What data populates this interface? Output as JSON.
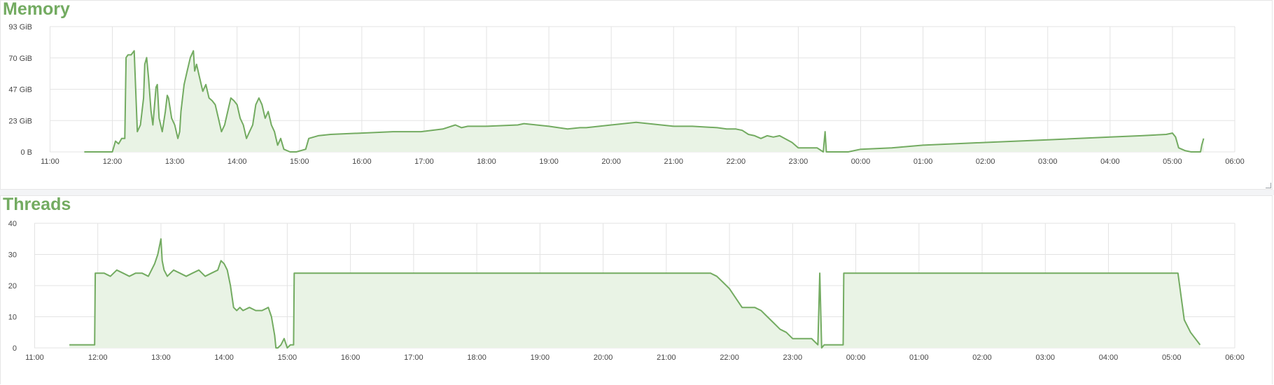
{
  "panels": {
    "memory": {
      "title": "Memory"
    },
    "threads": {
      "title": "Threads"
    }
  },
  "colors": {
    "series": "#73ab61",
    "fill": "#e9f3e5",
    "grid": "#e3e3e3",
    "axis_text": "#464646"
  },
  "chart_data": [
    {
      "type": "area",
      "title": "Memory",
      "xlabel": "",
      "ylabel": "",
      "x_ticks": [
        "11:00",
        "12:00",
        "13:00",
        "14:00",
        "15:00",
        "16:00",
        "17:00",
        "18:00",
        "19:00",
        "20:00",
        "21:00",
        "22:00",
        "23:00",
        "00:00",
        "01:00",
        "02:00",
        "03:00",
        "04:00",
        "05:00",
        "06:00"
      ],
      "y_ticks": [
        "0 B",
        "23 GiB",
        "47 GiB",
        "70 GiB",
        "93 GiB"
      ],
      "ylim": [
        0,
        93
      ],
      "y_unit": "GiB",
      "xlim_hours": [
        10.995,
        30.0
      ],
      "grid": true,
      "legend": "none",
      "series": [
        {
          "x_hours": [
            11.55,
            12.0,
            12.05,
            12.1,
            12.15,
            12.2,
            12.22,
            12.25,
            12.3,
            12.35,
            12.4,
            12.45,
            12.5,
            12.52,
            12.55,
            12.58,
            12.62,
            12.65,
            12.7,
            12.72,
            12.75,
            12.8,
            12.85,
            12.88,
            12.9,
            12.95,
            13.0,
            13.05,
            13.08,
            13.1,
            13.15,
            13.2,
            13.25,
            13.3,
            13.32,
            13.35,
            13.4,
            13.45,
            13.5,
            13.55,
            13.6,
            13.65,
            13.7,
            13.75,
            13.8,
            13.85,
            13.9,
            13.95,
            14.0,
            14.05,
            14.1,
            14.15,
            14.2,
            14.25,
            14.3,
            14.35,
            14.4,
            14.45,
            14.5,
            14.55,
            14.6,
            14.65,
            14.7,
            14.75,
            14.85,
            14.95,
            15.1,
            15.15,
            15.3,
            15.5,
            16.0,
            16.5,
            16.95,
            17.3,
            17.5,
            17.6,
            17.7,
            18.0,
            18.5,
            18.6,
            18.8,
            19.0,
            19.3,
            19.5,
            19.6,
            20.0,
            20.2,
            20.4,
            21.0,
            21.3,
            21.7,
            21.85,
            22.0,
            22.1,
            22.2,
            22.3,
            22.4,
            22.5,
            22.6,
            22.7,
            22.9,
            23.0,
            23.3,
            23.4,
            23.43,
            23.45,
            23.5,
            23.8,
            24.0,
            24.5,
            25.0,
            26.0,
            27.0,
            28.0,
            28.5,
            28.9,
            29.0,
            29.05,
            29.1,
            29.2,
            29.3,
            29.45,
            29.47,
            29.5
          ],
          "values": [
            0,
            0,
            8,
            6,
            10,
            10,
            70,
            72,
            72,
            75,
            15,
            20,
            40,
            65,
            70,
            55,
            30,
            20,
            48,
            50,
            25,
            15,
            30,
            42,
            40,
            25,
            20,
            10,
            15,
            30,
            50,
            60,
            70,
            75,
            60,
            65,
            55,
            45,
            50,
            40,
            38,
            35,
            25,
            15,
            20,
            30,
            40,
            38,
            35,
            25,
            20,
            10,
            15,
            20,
            35,
            40,
            35,
            25,
            30,
            20,
            15,
            5,
            10,
            2,
            0,
            0,
            2,
            10,
            12,
            13,
            14,
            15,
            15,
            17,
            20,
            18,
            19,
            19,
            20,
            21,
            20,
            19,
            17,
            18,
            18,
            20,
            21,
            22,
            19,
            19,
            18,
            17,
            17,
            16,
            13,
            12,
            10,
            12,
            11,
            12,
            7,
            3,
            3,
            0,
            15,
            0,
            0,
            0,
            2,
            3,
            5,
            7,
            9,
            11,
            12,
            13,
            14,
            11,
            3,
            1,
            0,
            0,
            5,
            10
          ]
        }
      ]
    },
    {
      "type": "area",
      "title": "Threads",
      "xlabel": "",
      "ylabel": "",
      "x_ticks": [
        "11:00",
        "12:00",
        "13:00",
        "14:00",
        "15:00",
        "16:00",
        "17:00",
        "18:00",
        "19:00",
        "20:00",
        "21:00",
        "22:00",
        "23:00",
        "00:00",
        "01:00",
        "02:00",
        "03:00",
        "04:00",
        "05:00",
        "06:00"
      ],
      "y_ticks": [
        "0",
        "10",
        "20",
        "30",
        "40"
      ],
      "ylim": [
        0,
        40
      ],
      "xlim_hours": [
        10.995,
        30.0
      ],
      "grid": true,
      "legend": "none",
      "series": [
        {
          "x_hours": [
            11.55,
            11.95,
            11.96,
            12.1,
            12.2,
            12.3,
            12.4,
            12.5,
            12.6,
            12.7,
            12.8,
            12.85,
            12.9,
            12.95,
            13.0,
            13.02,
            13.05,
            13.1,
            13.15,
            13.2,
            13.3,
            13.4,
            13.5,
            13.6,
            13.7,
            13.8,
            13.9,
            13.95,
            14.0,
            14.05,
            14.1,
            14.15,
            14.2,
            14.25,
            14.3,
            14.4,
            14.5,
            14.6,
            14.7,
            14.75,
            14.8,
            14.82,
            14.85,
            14.9,
            14.95,
            15.0,
            15.05,
            15.1,
            15.11,
            15.5,
            16.0,
            17.0,
            18.0,
            19.0,
            20.0,
            21.0,
            21.5,
            21.6,
            21.7,
            21.8,
            21.9,
            22.0,
            22.1,
            22.2,
            22.4,
            22.5,
            22.6,
            22.7,
            22.8,
            22.9,
            23.0,
            23.2,
            23.3,
            23.35,
            23.4,
            23.43,
            23.46,
            23.5,
            23.8,
            23.81,
            24.0,
            25.0,
            26.0,
            27.0,
            28.0,
            28.7,
            28.8,
            28.9,
            29.0,
            29.05,
            29.1,
            29.2,
            29.3,
            29.45
          ],
          "values": [
            1,
            1,
            24,
            24,
            23,
            25,
            24,
            23,
            24,
            24,
            23,
            25,
            27,
            30,
            35,
            28,
            25,
            23,
            24,
            25,
            24,
            23,
            24,
            25,
            23,
            24,
            25,
            28,
            27,
            25,
            20,
            13,
            12,
            13,
            12,
            13,
            12,
            12,
            13,
            10,
            4,
            0,
            0,
            1,
            3,
            0,
            1,
            1,
            24,
            24,
            24,
            24,
            24,
            24,
            24,
            24,
            24,
            24,
            24,
            23,
            21,
            19,
            16,
            13,
            13,
            12,
            10,
            8,
            6,
            5,
            3,
            3,
            3,
            2,
            1,
            24,
            0,
            1,
            1,
            24,
            24,
            24,
            24,
            24,
            24,
            24,
            24,
            24,
            24,
            24,
            24,
            9,
            5,
            1
          ]
        }
      ]
    }
  ]
}
